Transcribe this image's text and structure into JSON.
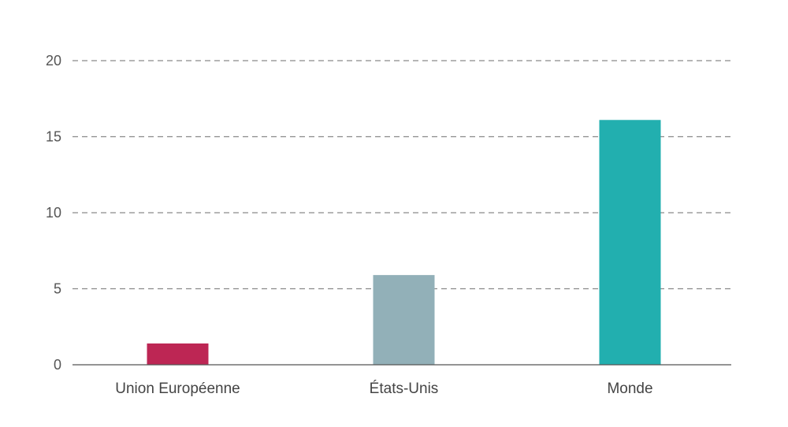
{
  "chart_data": {
    "type": "bar",
    "title": "",
    "xlabel": "",
    "ylabel": "",
    "categories": [
      "Union Européenne",
      "États-Unis",
      "Monde"
    ],
    "values": [
      1.4,
      5.9,
      16.1
    ],
    "colors": [
      "#bd2654",
      "#92b0b8",
      "#22afaf"
    ],
    "ylim": [
      0,
      20
    ],
    "yticks": [
      "0",
      "5",
      "10",
      "15",
      "20"
    ],
    "grid": true,
    "legend": "none"
  }
}
